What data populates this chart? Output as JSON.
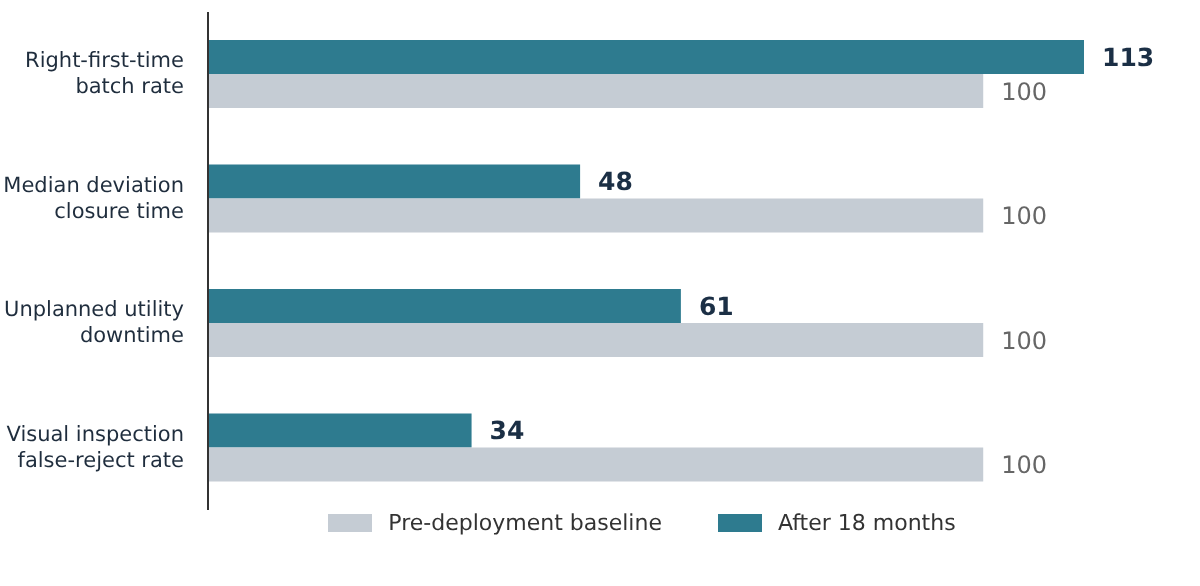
{
  "chart_data": {
    "type": "bar",
    "orientation": "horizontal",
    "categories": [
      "Right-first-time batch rate",
      "Median deviation closure time",
      "Unplanned utility downtime",
      "Visual inspection false-reject rate"
    ],
    "series": [
      {
        "name": "After 18 months",
        "color": "#2e7b8f",
        "values": [
          113,
          48,
          61,
          34
        ]
      },
      {
        "name": "Pre-deployment baseline",
        "color": "#c5ccd4",
        "values": [
          100,
          100,
          100,
          100
        ]
      }
    ],
    "data_labels": true,
    "legend": "bottom"
  }
}
